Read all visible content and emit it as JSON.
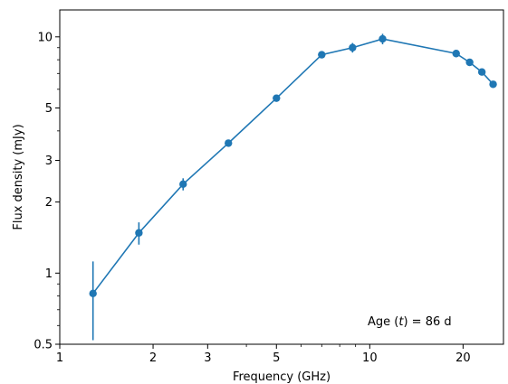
{
  "chart_data": {
    "type": "line",
    "xlabel": "Frequency (GHz)",
    "ylabel": "Flux density (mJy)",
    "annotation": {
      "prefix": "Age (",
      "variable": "t",
      "suffix": ") = 86 d"
    },
    "x_scale": "log",
    "y_scale": "log",
    "xlim": [
      1,
      27
    ],
    "ylim": [
      0.5,
      13
    ],
    "x_major_ticks": [
      {
        "value": 1,
        "label": "1"
      },
      {
        "value": 2,
        "label": "2"
      },
      {
        "value": 3,
        "label": "3"
      },
      {
        "value": 5,
        "label": "5"
      },
      {
        "value": 10,
        "label": "10"
      },
      {
        "value": 20,
        "label": "20"
      }
    ],
    "x_minor_ticks": [
      4,
      6,
      7,
      8,
      9
    ],
    "y_major_ticks": [
      {
        "value": 0.5,
        "label": "0.5"
      },
      {
        "value": 1,
        "label": "1"
      },
      {
        "value": 2,
        "label": "2"
      },
      {
        "value": 3,
        "label": "3"
      },
      {
        "value": 5,
        "label": "5"
      },
      {
        "value": 10,
        "label": "10"
      }
    ],
    "y_minor_ticks": [
      0.6,
      0.7,
      0.8,
      0.9,
      4,
      6,
      7,
      8,
      9
    ],
    "grid": false,
    "legend": "none",
    "color": "#1f77b4",
    "series": [
      {
        "x": [
          1.28,
          1.8,
          2.5,
          3.5,
          5.0,
          7.0,
          8.8,
          11.0,
          19.0,
          21.0,
          23.0,
          25.0
        ],
        "y": [
          0.82,
          1.48,
          2.38,
          3.55,
          5.5,
          8.4,
          9.0,
          9.8,
          8.5,
          7.8,
          7.1,
          6.3
        ],
        "yerr": [
          0.3,
          0.16,
          0.14,
          0.12,
          0.15,
          0.2,
          0.42,
          0.5,
          0.3,
          0.25,
          0.22,
          0.2
        ]
      }
    ]
  }
}
